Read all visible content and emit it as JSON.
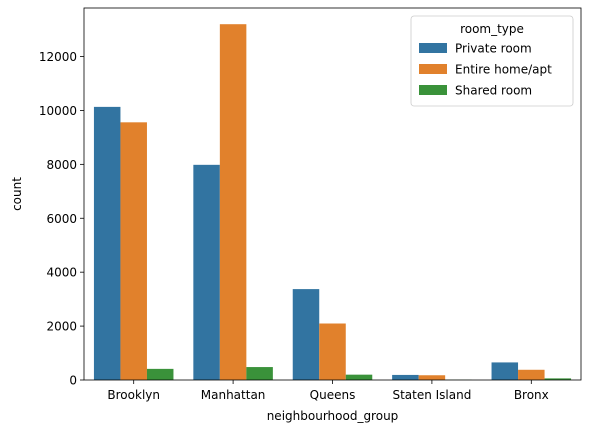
{
  "chart_data": {
    "type": "bar",
    "xlabel": "neighbourhood_group",
    "ylabel": "count",
    "categories": [
      "Brooklyn",
      "Manhattan",
      "Queens",
      "Staten Island",
      "Bronx"
    ],
    "ylim": [
      0,
      13800
    ],
    "yticks": [
      0,
      2000,
      4000,
      6000,
      8000,
      10000,
      12000
    ],
    "legend": {
      "title": "room_type",
      "position": "top-right"
    },
    "series": [
      {
        "name": "Private room",
        "color": "#3274a1",
        "values": [
          10132,
          7982,
          3372,
          188,
          652
        ]
      },
      {
        "name": "Entire home/apt",
        "color": "#e1812c",
        "values": [
          9559,
          13199,
          2096,
          176,
          379
        ]
      },
      {
        "name": "Shared room",
        "color": "#3a923a",
        "values": [
          413,
          480,
          198,
          9,
          60
        ]
      }
    ]
  }
}
